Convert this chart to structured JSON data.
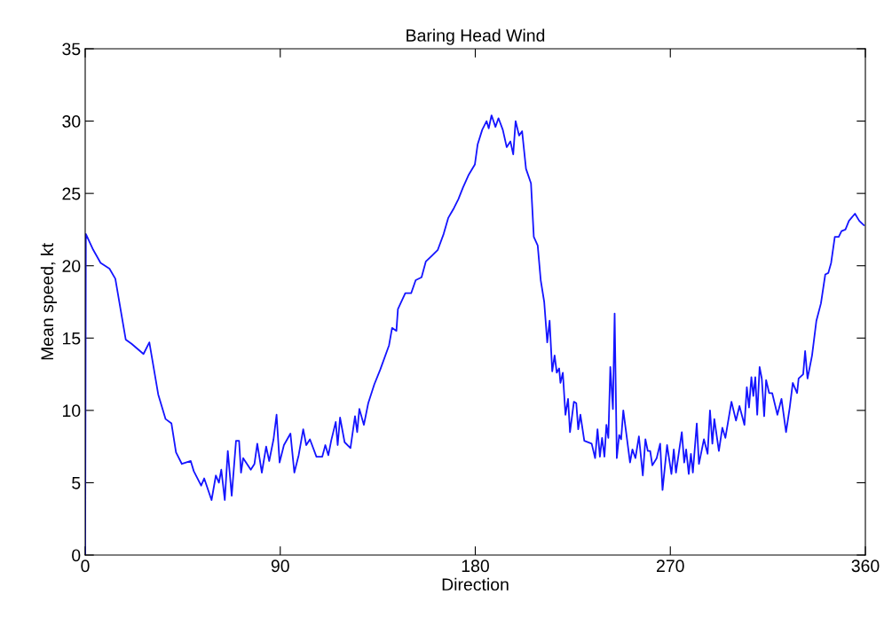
{
  "chart_data": {
    "type": "line",
    "title": "Baring Head Wind",
    "xlabel": "Direction",
    "ylabel": "Mean speed, kt",
    "xlim": [
      0,
      360
    ],
    "xticks": [
      0,
      90,
      180,
      270,
      360
    ],
    "ylim": [
      0,
      35
    ],
    "yticks": [
      0,
      5,
      10,
      15,
      20,
      25,
      30,
      35
    ],
    "grid": false,
    "series": [
      {
        "color": "#1414ff",
        "x": [
          0,
          0.3,
          3.7,
          7.1,
          11.2,
          13.9,
          18.7,
          21.4,
          26.9,
          29.6,
          33.7,
          37.1,
          39.8,
          41.9,
          44.6,
          48.7,
          50.1,
          53.5,
          54.9,
          58.3,
          60.3,
          61.7,
          62.8,
          64.4,
          65.8,
          67.6,
          69.6,
          71.0,
          71.9,
          72.9,
          76.4,
          78.1,
          79.4,
          81.5,
          83.5,
          84.9,
          86.9,
          88.3,
          89.7,
          91.7,
          94.7,
          96.5,
          98.5,
          100.6,
          102.0,
          103.7,
          106.7,
          109.4,
          110.8,
          112.2,
          113.5,
          115.6,
          116.5,
          117.6,
          119.7,
          122.4,
          124.5,
          125.5,
          126.5,
          128.6,
          130.6,
          133.4,
          136.1,
          140.2,
          141.6,
          143.6,
          144.3,
          147.7,
          150.4,
          152.5,
          155.2,
          157.2,
          160.0,
          162.7,
          165.4,
          167.5,
          170.2,
          172.2,
          174.3,
          177.0,
          179.8,
          181.1,
          183.2,
          185.2,
          186.2,
          187.5,
          189.3,
          190.7,
          192.7,
          194.5,
          196.2,
          197.5,
          198.6,
          200.2,
          201.6,
          203.4,
          205.7,
          207.0,
          208.8,
          210.2,
          211.8,
          213.2,
          214.3,
          215.5,
          216.6,
          217.6,
          218.7,
          219.3,
          220.4,
          221.6,
          222.8,
          223.7,
          225.5,
          226.6,
          227.5,
          228.5,
          230.3,
          233.7,
          235.3,
          236.4,
          237.5,
          238.5,
          239.6,
          240.5,
          241.4,
          242.3,
          243.5,
          244.3,
          245.3,
          246.4,
          247.3,
          248.3,
          249.6,
          251.4,
          252.5,
          253.9,
          255.5,
          257.3,
          258.5,
          259.6,
          260.7,
          261.7,
          263.7,
          265.3,
          266.4,
          268.5,
          270.5,
          271.6,
          272.6,
          275.3,
          276.4,
          277.3,
          278.5,
          279.5,
          280.4,
          282.2,
          283.2,
          285.5,
          287.2,
          288.3,
          289.4,
          290.3,
          292.4,
          294.0,
          295.4,
          298.2,
          300.3,
          301.9,
          304.2,
          305.3,
          306.3,
          307.4,
          308.3,
          309.2,
          310.1,
          311.2,
          312.2,
          313.3,
          314.2,
          315.6,
          317.0,
          319.4,
          321.3,
          323.4,
          325.1,
          326.5,
          328.5,
          329.2,
          331.3,
          332.2,
          333.3,
          335.4,
          337.4,
          339.5,
          341.5,
          342.9,
          344.2,
          345.9,
          347.7,
          349.0,
          350.8,
          352.4,
          355.2,
          357.2,
          359.3
        ],
        "values": [
          0,
          22.2,
          21.1,
          20.2,
          19.8,
          19.1,
          14.9,
          14.6,
          13.9,
          14.7,
          11.1,
          9.4,
          9.1,
          7.1,
          6.3,
          6.5,
          5.8,
          4.8,
          5.3,
          3.8,
          5.5,
          5.0,
          5.9,
          3.8,
          7.2,
          4.1,
          7.9,
          7.9,
          5.7,
          6.7,
          5.9,
          6.3,
          7.7,
          5.7,
          7.5,
          6.5,
          8.0,
          9.7,
          6.4,
          7.6,
          8.4,
          5.7,
          6.9,
          8.7,
          7.6,
          8.0,
          6.8,
          6.8,
          7.6,
          6.9,
          7.9,
          9.2,
          7.6,
          9.5,
          7.8,
          7.4,
          9.6,
          8.5,
          10.1,
          9.0,
          10.5,
          11.8,
          12.8,
          14.5,
          15.7,
          15.5,
          17.0,
          18.1,
          18.1,
          19.0,
          19.2,
          20.3,
          20.7,
          21.1,
          22.2,
          23.3,
          24.0,
          24.6,
          25.4,
          26.3,
          27.0,
          28.4,
          29.4,
          30.0,
          29.5,
          30.4,
          29.6,
          30.2,
          29.4,
          28.2,
          28.6,
          27.7,
          30.0,
          29.0,
          29.3,
          26.7,
          25.7,
          22.0,
          21.4,
          19.0,
          17.5,
          14.7,
          16.2,
          12.7,
          13.8,
          12.6,
          12.9,
          11.9,
          12.6,
          9.7,
          10.8,
          8.5,
          10.6,
          10.5,
          8.7,
          9.7,
          7.9,
          7.7,
          6.7,
          8.7,
          6.8,
          8.1,
          6.8,
          9.0,
          8.1,
          13.0,
          10.1,
          16.7,
          6.7,
          8.3,
          8.0,
          10.0,
          8.5,
          6.4,
          7.3,
          6.7,
          8.2,
          5.5,
          8.0,
          7.2,
          7.2,
          6.2,
          6.7,
          7.7,
          4.5,
          7.6,
          5.6,
          7.3,
          5.7,
          8.5,
          6.4,
          7.3,
          5.6,
          7.0,
          5.7,
          9.1,
          6.3,
          8.0,
          7.0,
          10.0,
          7.7,
          9.4,
          7.2,
          8.8,
          8.1,
          10.6,
          9.3,
          10.3,
          9.0,
          11.6,
          10.2,
          12.3,
          11.0,
          12.3,
          9.7,
          13.0,
          12.2,
          9.6,
          12.1,
          11.2,
          11.2,
          9.7,
          10.8,
          8.5,
          10.2,
          11.9,
          11.2,
          12.2,
          12.5,
          14.1,
          12.2,
          13.8,
          16.2,
          17.4,
          19.4,
          19.5,
          20.2,
          22.0,
          22.0,
          22.4,
          22.5,
          23.1,
          23.6,
          23.1,
          22.8
        ]
      }
    ]
  }
}
